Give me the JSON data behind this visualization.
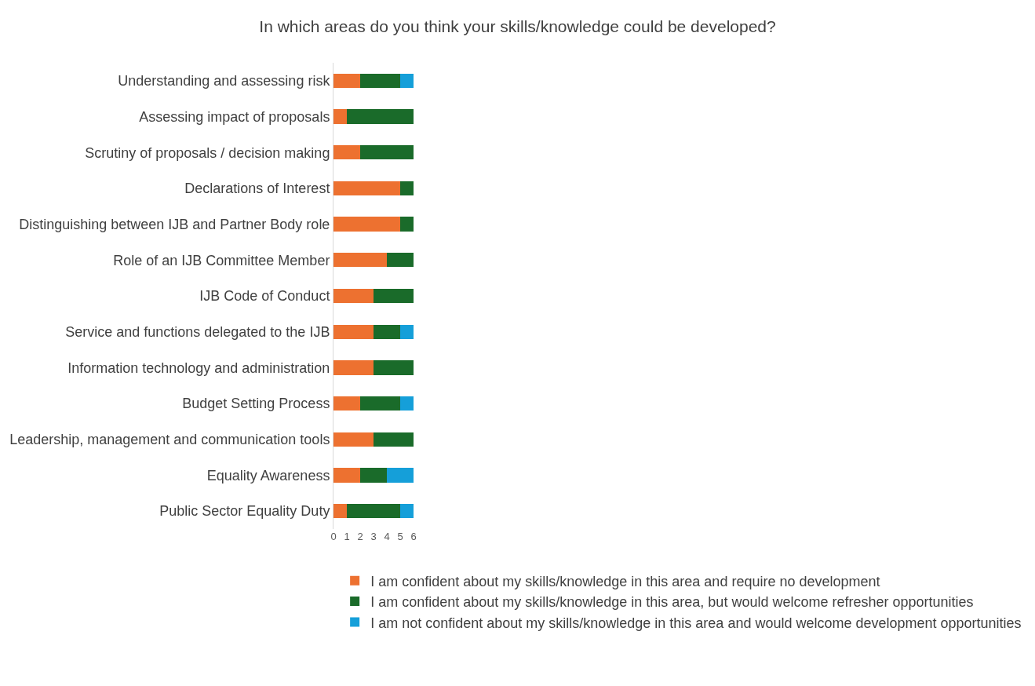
{
  "chart_data": {
    "type": "bar",
    "orientation": "horizontal",
    "stacked": true,
    "title": "In which areas do you think your skills/knowledge could be developed?",
    "categories": [
      "Understanding and assessing risk",
      "Assessing impact of proposals",
      "Scrutiny of proposals / decision making",
      "Declarations of Interest",
      "Distinguishing between IJB and Partner Body role",
      "Role of an IJB Committee Member",
      "IJB Code of Conduct",
      "Service and functions delegated to the IJB",
      "Information technology and administration",
      "Budget Setting Process",
      "Leadership, management and communication tools",
      "Equality Awareness",
      "Public Sector Equality Duty"
    ],
    "series": [
      {
        "name": "I am confident about my skills/knowledge in this area and require no development",
        "color": "#ed7130",
        "values": [
          2,
          1,
          2,
          5,
          5,
          4,
          3,
          3,
          3,
          2,
          3,
          2,
          1
        ]
      },
      {
        "name": "I am confident about my skills/knowledge in this area, but would welcome refresher opportunities",
        "color": "#1a6b2a",
        "values": [
          3,
          5,
          4,
          1,
          1,
          2,
          3,
          2,
          3,
          3,
          3,
          2,
          4
        ]
      },
      {
        "name": "I am not confident about my skills/knowledge in this area and would welcome development opportunities",
        "color": "#159fd9",
        "values": [
          1,
          0,
          0,
          0,
          0,
          0,
          0,
          1,
          0,
          1,
          0,
          2,
          1
        ]
      }
    ],
    "xlim": [
      0,
      6
    ],
    "xticks": [
      0,
      1,
      2,
      3,
      4,
      5,
      6
    ],
    "grid": false,
    "legend": "bottom"
  }
}
